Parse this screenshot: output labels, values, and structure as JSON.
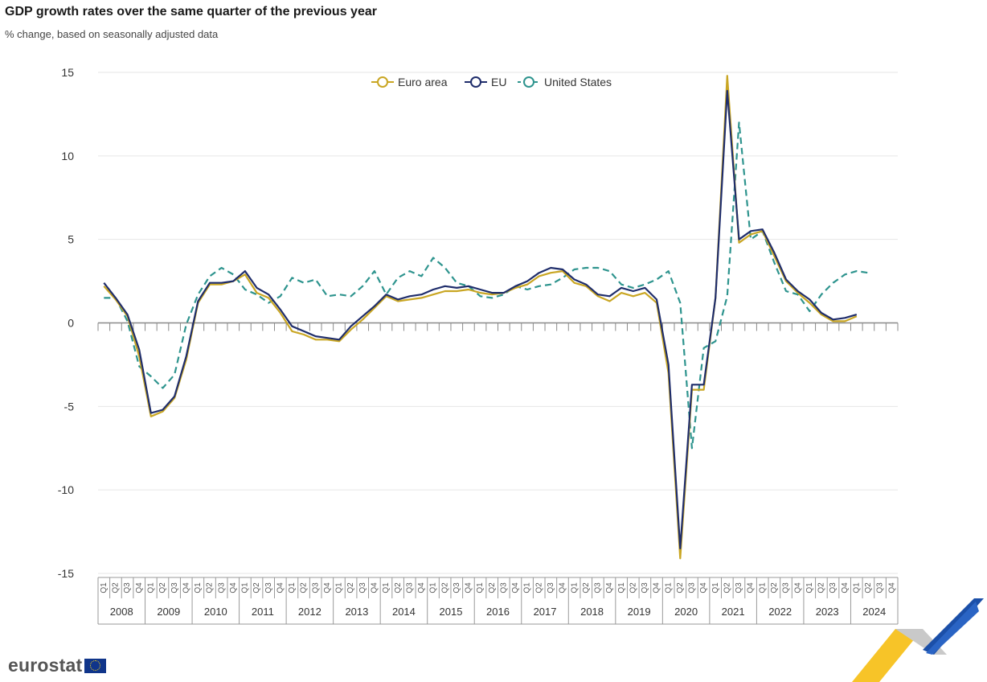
{
  "chart_data": {
    "type": "line",
    "title": "GDP growth rates over the same quarter of the previous year",
    "subtitle": "% change, based on seasonally adjusted data",
    "xlabel": "",
    "ylabel": "",
    "ylim": [
      -15,
      15
    ],
    "yticks": [
      15,
      10,
      5,
      0,
      -5,
      -10,
      -15
    ],
    "ytick_labels": [
      "15",
      "10",
      "5",
      "0",
      "-5",
      "-10",
      "-15"
    ],
    "years": [
      "2008",
      "2009",
      "2010",
      "2011",
      "2012",
      "2013",
      "2014",
      "2015",
      "2016",
      "2017",
      "2018",
      "2019",
      "2020",
      "2021",
      "2022",
      "2023",
      "2024"
    ],
    "quarters": [
      "Q1",
      "Q2",
      "Q3",
      "Q4"
    ],
    "legend": {
      "position": "top-center",
      "entries": [
        "Euro area",
        "EU",
        "United States"
      ]
    },
    "grid": true,
    "series": [
      {
        "name": "Euro area",
        "color": "#c9a623",
        "dash": "solid",
        "values": [
          2.2,
          1.4,
          0.4,
          -2.0,
          -5.6,
          -5.3,
          -4.5,
          -2.2,
          1.2,
          2.3,
          2.3,
          2.5,
          2.9,
          1.8,
          1.5,
          0.6,
          -0.5,
          -0.7,
          -1.0,
          -1.0,
          -1.1,
          -0.4,
          0.2,
          0.9,
          1.6,
          1.3,
          1.4,
          1.5,
          1.7,
          1.9,
          1.9,
          2.0,
          1.8,
          1.7,
          1.8,
          2.1,
          2.3,
          2.8,
          3.0,
          3.1,
          2.4,
          2.2,
          1.6,
          1.3,
          1.8,
          1.6,
          1.8,
          1.2,
          -3.0,
          -14.1,
          -4.0,
          -4.0,
          1.5,
          14.8,
          4.8,
          5.3,
          5.5,
          4.0,
          2.5,
          1.8,
          1.2,
          0.5,
          0.1,
          0.1,
          0.4
        ],
        "start": 0
      },
      {
        "name": "EU",
        "color": "#1f2d6b",
        "dash": "solid",
        "values": [
          2.4,
          1.5,
          0.5,
          -1.6,
          -5.4,
          -5.2,
          -4.4,
          -2.0,
          1.3,
          2.4,
          2.4,
          2.5,
          3.1,
          2.1,
          1.7,
          0.8,
          -0.2,
          -0.5,
          -0.8,
          -0.9,
          -1.0,
          -0.2,
          0.4,
          1.0,
          1.7,
          1.4,
          1.6,
          1.7,
          2.0,
          2.2,
          2.1,
          2.2,
          2.0,
          1.8,
          1.8,
          2.2,
          2.5,
          3.0,
          3.3,
          3.2,
          2.6,
          2.3,
          1.7,
          1.6,
          2.1,
          1.9,
          2.1,
          1.4,
          -2.5,
          -13.5,
          -3.7,
          -3.7,
          1.5,
          13.9,
          5.0,
          5.5,
          5.6,
          4.2,
          2.6,
          1.9,
          1.4,
          0.6,
          0.2,
          0.3,
          0.5
        ],
        "start": 0
      },
      {
        "name": "United States",
        "color": "#2e948e",
        "dash": "dashed",
        "values": [
          1.5,
          1.5,
          0.1,
          -2.6,
          -3.2,
          -3.9,
          -3.1,
          -0.1,
          1.7,
          2.8,
          3.3,
          2.9,
          2.0,
          1.7,
          1.2,
          1.6,
          2.7,
          2.4,
          2.6,
          1.6,
          1.7,
          1.6,
          2.2,
          3.1,
          1.7,
          2.7,
          3.1,
          2.8,
          3.9,
          3.3,
          2.4,
          2.2,
          1.6,
          1.5,
          1.7,
          2.2,
          2.0,
          2.2,
          2.3,
          2.7,
          3.2,
          3.3,
          3.3,
          3.1,
          2.3,
          2.1,
          2.3,
          2.6,
          3.1,
          1.2,
          -7.5,
          -1.5,
          -1.1,
          1.6,
          12.0,
          5.0,
          5.5,
          3.6,
          1.9,
          1.7,
          0.7,
          1.7,
          2.4,
          2.9,
          3.1,
          3.0
        ],
        "start": 0
      }
    ]
  },
  "branding": {
    "logo_text": "eurostat"
  }
}
